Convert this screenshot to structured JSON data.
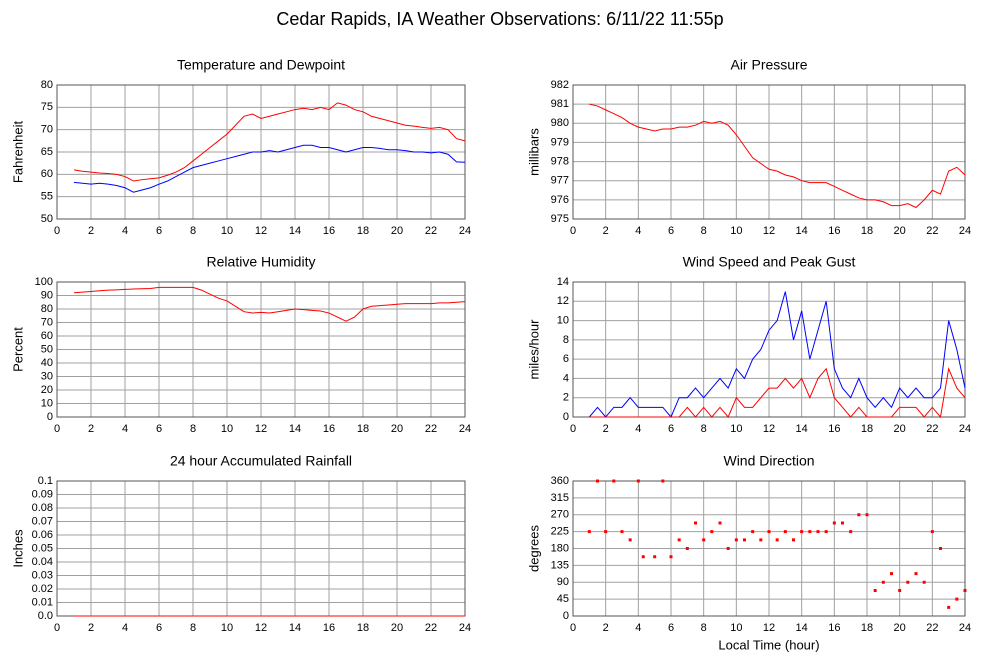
{
  "title": "Cedar Rapids, IA Weather Observations: 6/11/22 11:55p",
  "chart_data": [
    {
      "type": "line",
      "title": "Temperature and Dewpoint",
      "ylabel": "Fahrenheit",
      "xlim": [
        0,
        24
      ],
      "xticks": [
        0,
        2,
        4,
        6,
        8,
        10,
        12,
        14,
        16,
        18,
        20,
        22,
        24
      ],
      "ylim": [
        50,
        80
      ],
      "yticks": [
        50,
        55,
        60,
        65,
        70,
        75,
        80
      ],
      "grid": true,
      "x": [
        1,
        1.5,
        2,
        2.5,
        3,
        3.5,
        4,
        4.5,
        5,
        5.5,
        6,
        6.5,
        7,
        7.5,
        8,
        8.5,
        9,
        9.5,
        10,
        10.5,
        11,
        11.5,
        12,
        12.5,
        13,
        13.5,
        14,
        14.5,
        15,
        15.5,
        16,
        16.5,
        17,
        17.5,
        18,
        18.5,
        19,
        19.5,
        20,
        20.5,
        21,
        21.5,
        22,
        22.5,
        23,
        23.5,
        24
      ],
      "series": [
        {
          "color": "#ff0000",
          "values": [
            61,
            60.7,
            60.5,
            60.3,
            60.2,
            60,
            59.5,
            58.5,
            58.8,
            59,
            59.2,
            59.8,
            60.5,
            61.5,
            63,
            64.5,
            66,
            67.5,
            69,
            71,
            73,
            73.5,
            72.5,
            73,
            73.5,
            74,
            74.5,
            74.8,
            74.5,
            75,
            74.5,
            76,
            75.5,
            74.5,
            74,
            73,
            72.5,
            72,
            71.5,
            71,
            70.8,
            70.5,
            70.3,
            70.5,
            70,
            68,
            67.5
          ]
        },
        {
          "color": "#0000ff",
          "values": [
            58.2,
            58,
            57.8,
            58,
            57.8,
            57.5,
            57,
            56,
            56.5,
            57,
            57.8,
            58.5,
            59.5,
            60.5,
            61.5,
            62,
            62.5,
            63,
            63.5,
            64,
            64.5,
            65,
            65,
            65.3,
            65,
            65.5,
            66,
            66.5,
            66.5,
            66,
            66,
            65.5,
            65,
            65.5,
            66,
            66,
            65.8,
            65.5,
            65.5,
            65.3,
            65,
            65,
            64.8,
            65,
            64.5,
            62.8,
            62.7
          ]
        }
      ]
    },
    {
      "type": "line",
      "title": "Air Pressure",
      "ylabel": "millibars",
      "xlim": [
        0,
        24
      ],
      "xticks": [
        0,
        2,
        4,
        6,
        8,
        10,
        12,
        14,
        16,
        18,
        20,
        22,
        24
      ],
      "ylim": [
        975,
        982
      ],
      "yticks": [
        975,
        976,
        977,
        978,
        979,
        980,
        981,
        982
      ],
      "grid": true,
      "x": [
        1,
        1.5,
        2,
        2.5,
        3,
        3.5,
        4,
        4.5,
        5,
        5.5,
        6,
        6.5,
        7,
        7.5,
        8,
        8.5,
        9,
        9.5,
        10,
        10.5,
        11,
        11.5,
        12,
        12.5,
        13,
        13.5,
        14,
        14.5,
        15,
        15.5,
        16,
        16.5,
        17,
        17.5,
        18,
        18.5,
        19,
        19.5,
        20,
        20.5,
        21,
        21.5,
        22,
        22.5,
        23,
        23.5,
        24
      ],
      "series": [
        {
          "color": "#ff0000",
          "values": [
            981,
            980.9,
            980.7,
            980.5,
            980.3,
            980,
            979.8,
            979.7,
            979.6,
            979.7,
            979.7,
            979.8,
            979.8,
            979.9,
            980.1,
            980,
            980.1,
            979.9,
            979.4,
            978.8,
            978.2,
            977.9,
            977.6,
            977.5,
            977.3,
            977.2,
            977,
            976.9,
            976.9,
            976.9,
            976.7,
            976.5,
            976.3,
            976.1,
            976,
            976,
            975.9,
            975.7,
            975.7,
            975.8,
            975.6,
            976,
            976.5,
            976.3,
            977.5,
            977.7,
            977.3
          ]
        }
      ]
    },
    {
      "type": "line",
      "title": "Relative Humidity",
      "ylabel": "Percent",
      "xlim": [
        0,
        24
      ],
      "xticks": [
        0,
        2,
        4,
        6,
        8,
        10,
        12,
        14,
        16,
        18,
        20,
        22,
        24
      ],
      "ylim": [
        0,
        100
      ],
      "yticks": [
        0,
        10,
        20,
        30,
        40,
        50,
        60,
        70,
        80,
        90,
        100
      ],
      "grid": true,
      "x": [
        1,
        1.5,
        2,
        2.5,
        3,
        3.5,
        4,
        4.5,
        5,
        5.5,
        6,
        6.5,
        7,
        7.5,
        8,
        8.5,
        9,
        9.5,
        10,
        10.5,
        11,
        11.5,
        12,
        12.5,
        13,
        13.5,
        14,
        14.5,
        15,
        15.5,
        16,
        16.5,
        17,
        17.5,
        18,
        18.5,
        19,
        19.5,
        20,
        20.5,
        21,
        21.5,
        22,
        22.5,
        23,
        23.5,
        24
      ],
      "series": [
        {
          "color": "#ff0000",
          "values": [
            92,
            92.5,
            93,
            93.5,
            94,
            94.2,
            94.5,
            94.8,
            95,
            95.2,
            96,
            96,
            96,
            96,
            96,
            94,
            91,
            88,
            86,
            82,
            78,
            77,
            77.5,
            77,
            78,
            79,
            80,
            79.5,
            79,
            78.5,
            77,
            74,
            71,
            74,
            80,
            82,
            82.5,
            83,
            83.5,
            84,
            84,
            84,
            84,
            84.5,
            84.5,
            85,
            85.5
          ]
        }
      ]
    },
    {
      "type": "line",
      "title": "Wind Speed and Peak Gust",
      "ylabel": "miles/hour",
      "xlim": [
        0,
        24
      ],
      "xticks": [
        0,
        2,
        4,
        6,
        8,
        10,
        12,
        14,
        16,
        18,
        20,
        22,
        24
      ],
      "ylim": [
        0,
        14
      ],
      "yticks": [
        0,
        2,
        4,
        6,
        8,
        10,
        12,
        14
      ],
      "grid": true,
      "x": [
        1,
        1.5,
        2,
        2.5,
        3,
        3.5,
        4,
        4.5,
        5,
        5.5,
        6,
        6.5,
        7,
        7.5,
        8,
        8.5,
        9,
        9.5,
        10,
        10.5,
        11,
        11.5,
        12,
        12.5,
        13,
        13.5,
        14,
        14.5,
        15,
        15.5,
        16,
        16.5,
        17,
        17.5,
        18,
        18.5,
        19,
        19.5,
        20,
        20.5,
        21,
        21.5,
        22,
        22.5,
        23,
        23.5,
        24
      ],
      "series": [
        {
          "color": "#0000ff",
          "values": [
            0,
            1,
            0,
            1,
            1,
            2,
            1,
            1,
            1,
            1,
            0,
            2,
            2,
            3,
            2,
            3,
            4,
            3,
            5,
            4,
            6,
            7,
            9,
            10,
            13,
            8,
            11,
            6,
            9,
            12,
            5,
            3,
            2,
            4,
            2,
            1,
            2,
            1,
            3,
            2,
            3,
            2,
            2,
            3,
            10,
            7,
            3
          ]
        },
        {
          "color": "#ff0000",
          "values": [
            0,
            0,
            0,
            0,
            0,
            0,
            0,
            0,
            0,
            0,
            0,
            0,
            1,
            0,
            1,
            0,
            1,
            0,
            2,
            1,
            1,
            2,
            3,
            3,
            4,
            3,
            4,
            2,
            4,
            5,
            2,
            1,
            0,
            1,
            0,
            0,
            0,
            0,
            1,
            1,
            1,
            0,
            1,
            0,
            5,
            3,
            2
          ]
        }
      ]
    },
    {
      "type": "line",
      "title": "24 hour Accumulated Rainfall",
      "ylabel": "Inches",
      "xlim": [
        0,
        24
      ],
      "xticks": [
        0,
        2,
        4,
        6,
        8,
        10,
        12,
        14,
        16,
        18,
        20,
        22,
        24
      ],
      "ylim": [
        0,
        0.1
      ],
      "yticks": [
        {
          "value": 0,
          "label": "0.0"
        },
        0.01,
        0.02,
        0.03,
        0.04,
        0.05,
        0.06,
        0.07,
        0.08,
        0.09,
        0.1
      ],
      "grid": true,
      "x": [
        1,
        24
      ],
      "series": [
        {
          "color": "#ff0000",
          "values": [
            0,
            0
          ]
        }
      ]
    },
    {
      "type": "scatter",
      "title": "Wind Direction",
      "ylabel": "degrees",
      "xlabel": "Local Time (hour)",
      "xlim": [
        0,
        24
      ],
      "xticks": [
        0,
        2,
        4,
        6,
        8,
        10,
        12,
        14,
        16,
        18,
        20,
        22,
        24
      ],
      "ylim": [
        0,
        360
      ],
      "yticks": [
        0,
        45,
        90,
        135,
        180,
        225,
        270,
        315,
        360
      ],
      "grid": true,
      "color": "#ff0000",
      "x": [
        1,
        1.5,
        2,
        2.5,
        3,
        3.5,
        4,
        4.3,
        5,
        5.5,
        6,
        6.5,
        7,
        7.5,
        8,
        8.5,
        9,
        9.5,
        10,
        10.5,
        11,
        11.5,
        12,
        12.5,
        13,
        13.5,
        14,
        14.5,
        15,
        15.5,
        16,
        16.5,
        17,
        17.5,
        18,
        18.5,
        19,
        19.5,
        20,
        20.5,
        21,
        21.5,
        22,
        22.5,
        23,
        23.5,
        24
      ],
      "values": [
        225,
        360,
        225,
        360,
        225,
        203,
        360,
        158,
        158,
        360,
        158,
        203,
        180,
        248,
        203,
        225,
        248,
        180,
        203,
        203,
        225,
        203,
        225,
        203,
        225,
        203,
        225,
        225,
        225,
        225,
        248,
        248,
        225,
        270,
        270,
        68,
        90,
        113,
        68,
        90,
        113,
        90,
        225,
        180,
        23,
        45,
        68
      ]
    }
  ]
}
